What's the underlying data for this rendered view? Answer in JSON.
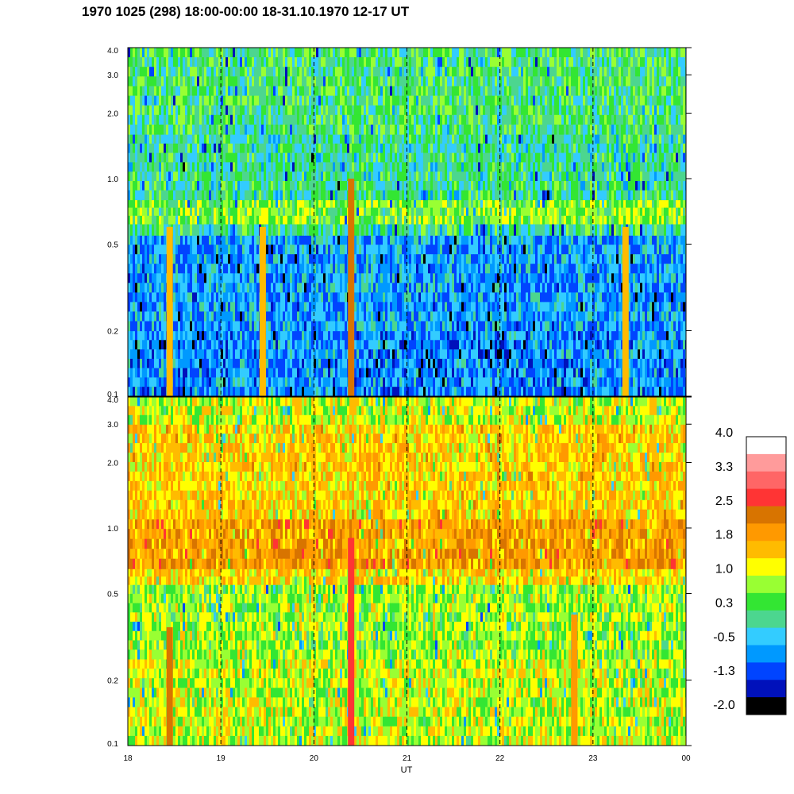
{
  "title": "1970 1025 (298) 18:00-00:00 18-31.10.1970  12-17 UT",
  "chart_data": {
    "type": "heatmap",
    "xlabel": "UT",
    "x_ticks": [
      "18",
      "19",
      "20",
      "21",
      "22",
      "23",
      "00"
    ],
    "x_range": [
      18,
      24
    ],
    "panels": [
      {
        "name": "",
        "y_scale": "log",
        "y_range": [
          0.1,
          4.0
        ],
        "y_ticks": [
          "0.1",
          "0.2",
          "0.5",
          "1.0",
          "2.0",
          "3.0",
          "4.0"
        ],
        "band_levels": [
          {
            "y": [
              0.1,
              0.2
            ],
            "level": -0.7
          },
          {
            "y": [
              0.2,
              0.55
            ],
            "level": -0.6
          },
          {
            "y": [
              0.55,
              0.62
            ],
            "level": 0.1
          },
          {
            "y": [
              0.62,
              0.8
            ],
            "level": 0.7
          },
          {
            "y": [
              0.8,
              1.6
            ],
            "level": 0.1
          },
          {
            "y": [
              1.6,
              4.0
            ],
            "level": 0.3
          }
        ],
        "features": [
          {
            "x": 20.4,
            "level": 2.2,
            "y": [
              0.1,
              1.0
            ]
          },
          {
            "x": 18.45,
            "level": 1.4,
            "y": [
              0.1,
              0.6
            ]
          },
          {
            "x": 19.45,
            "level": 1.4,
            "y": [
              0.1,
              0.6
            ]
          },
          {
            "x": 23.35,
            "level": 1.4,
            "y": [
              0.1,
              0.6
            ]
          }
        ]
      },
      {
        "name": "",
        "y_scale": "log",
        "y_range": [
          0.1,
          4.0
        ],
        "y_ticks": [
          "0.1",
          "0.2",
          "0.5",
          "1.0",
          "2.0",
          "3.0",
          "4.0"
        ],
        "band_levels": [
          {
            "y": [
              0.1,
              0.25
            ],
            "level": 1.0
          },
          {
            "y": [
              0.25,
              0.55
            ],
            "level": 0.8
          },
          {
            "y": [
              0.55,
              0.65
            ],
            "level": 1.4
          },
          {
            "y": [
              0.65,
              1.1
            ],
            "level": 1.9
          },
          {
            "y": [
              1.1,
              3.0
            ],
            "level": 1.5
          },
          {
            "y": [
              3.0,
              4.0
            ],
            "level": 1.0
          }
        ],
        "features": [
          {
            "x": 20.4,
            "level": 2.7,
            "y": [
              0.1,
              0.9
            ]
          },
          {
            "x": 22.8,
            "level": 1.9,
            "y": [
              0.1,
              0.4
            ]
          },
          {
            "x": 18.45,
            "level": 2.4,
            "y": [
              0.1,
              0.35
            ]
          }
        ]
      }
    ],
    "colorbar": {
      "labels": [
        "4.0",
        "3.3",
        "2.5",
        "1.8",
        "1.0",
        "0.3",
        "-0.5",
        "-1.3",
        "-2.0"
      ],
      "range": [
        -2.0,
        4.0
      ],
      "colors": [
        "#ffffff",
        "#ff9b9b",
        "#ff6666",
        "#ff3434",
        "#d87400",
        "#ff9900",
        "#ffbb00",
        "#ffff00",
        "#99ff33",
        "#33e633",
        "#4cd68f",
        "#33ccff",
        "#0099ff",
        "#0044ff",
        "#0011bb",
        "#000000"
      ]
    }
  }
}
